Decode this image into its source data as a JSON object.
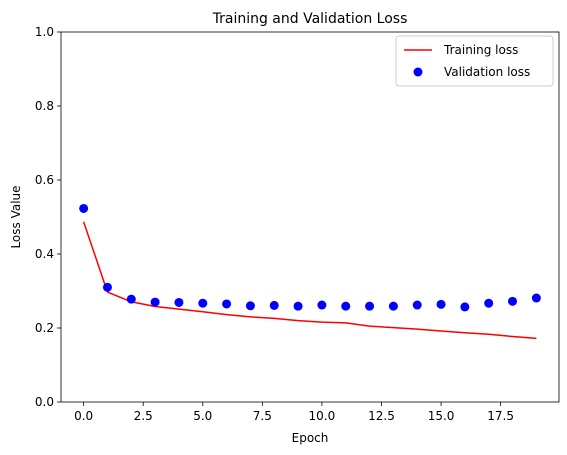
{
  "chart_data": {
    "type": "line",
    "title": "Training and Validation Loss",
    "xlabel": "Epoch",
    "ylabel": "Loss Value",
    "xlim": [
      -0.95,
      19.95
    ],
    "ylim": [
      0.0,
      1.0
    ],
    "xticks": [
      0.0,
      2.5,
      5.0,
      7.5,
      10.0,
      12.5,
      15.0,
      17.5
    ],
    "xtick_labels": [
      "0.0",
      "2.5",
      "5.0",
      "7.5",
      "10.0",
      "12.5",
      "15.0",
      "17.5"
    ],
    "yticks": [
      0.0,
      0.2,
      0.4,
      0.6,
      0.8,
      1.0
    ],
    "ytick_labels": [
      "0.0",
      "0.2",
      "0.4",
      "0.6",
      "0.8",
      "1.0"
    ],
    "grid": false,
    "legend_position": "top-right",
    "x": [
      0,
      1,
      2,
      3,
      4,
      5,
      6,
      7,
      8,
      9,
      10,
      11,
      12,
      13,
      14,
      15,
      16,
      17,
      18,
      19
    ],
    "series": [
      {
        "name": "Training loss",
        "style": "line",
        "color": "#ff0000",
        "values": [
          0.487,
          0.297,
          0.271,
          0.258,
          0.251,
          0.244,
          0.236,
          0.23,
          0.226,
          0.22,
          0.216,
          0.214,
          0.205,
          0.201,
          0.197,
          0.192,
          0.187,
          0.183,
          0.177,
          0.172
        ]
      },
      {
        "name": "Validation loss",
        "style": "markers",
        "color": "#0000ff",
        "values": [
          0.523,
          0.31,
          0.278,
          0.27,
          0.269,
          0.267,
          0.265,
          0.26,
          0.261,
          0.259,
          0.262,
          0.259,
          0.259,
          0.259,
          0.262,
          0.264,
          0.257,
          0.267,
          0.272,
          0.281
        ]
      }
    ]
  }
}
